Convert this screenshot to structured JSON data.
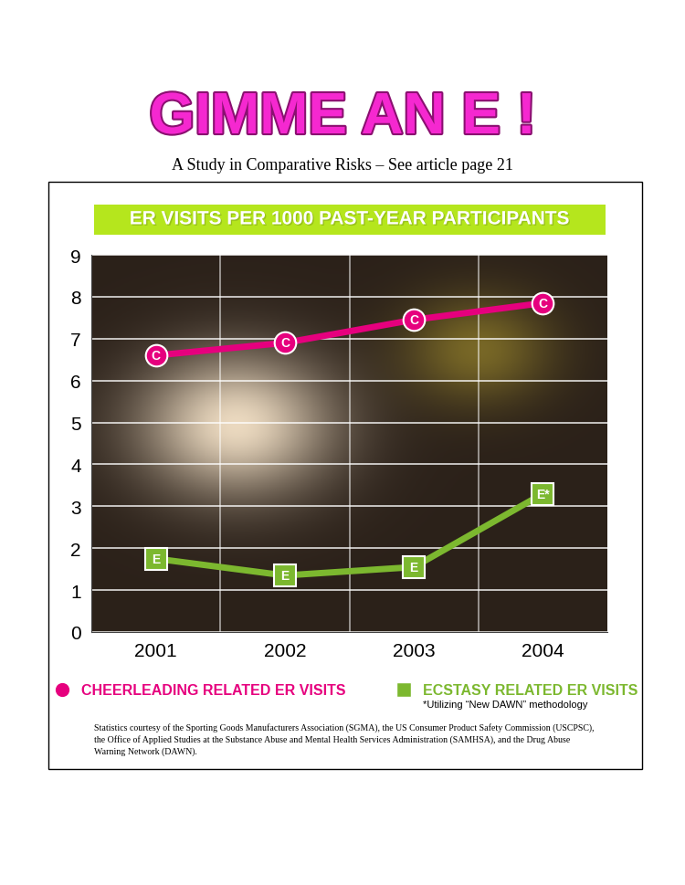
{
  "chart_data": {
    "type": "line",
    "heading": "GIMME AN E !",
    "subtitle": "A Study in Comparative Risks – See article page 21",
    "title": "ER VISITS PER 1000 PAST-YEAR PARTICIPANTS",
    "categories": [
      "2001",
      "2002",
      "2003",
      "2004"
    ],
    "series": [
      {
        "name": "CHEERLEADING RELATED ER VISITS",
        "color": "#e6007e",
        "marker": "circle",
        "values": [
          6.6,
          6.9,
          7.45,
          7.85
        ],
        "marker_labels": [
          "C",
          "C",
          "C",
          "C"
        ]
      },
      {
        "name": "ECSTASY RELATED ER VISITS",
        "color": "#7cb82f",
        "marker": "square",
        "values": [
          1.75,
          1.35,
          1.55,
          3.3
        ],
        "marker_labels": [
          "E",
          "E",
          "E",
          "E*"
        ]
      }
    ],
    "note": "*Utilizing “New DAWN” methodology",
    "source": [
      "Statistics courtesy of the Sporting Goods Manufacturers Association (SGMA), the US Consumer Product Safety Commission (USCPSC),",
      "the Office of Applied Studies at the Substance Abuse and Mental Health Services Administration (SAMHSA), and the Drug Abuse",
      "Warning Network (DAWN)."
    ],
    "ylim": [
      0,
      9
    ],
    "yticks": [
      0,
      1,
      2,
      3,
      4,
      5,
      6,
      7,
      8,
      9
    ],
    "grid": true,
    "legend": "upper center"
  }
}
